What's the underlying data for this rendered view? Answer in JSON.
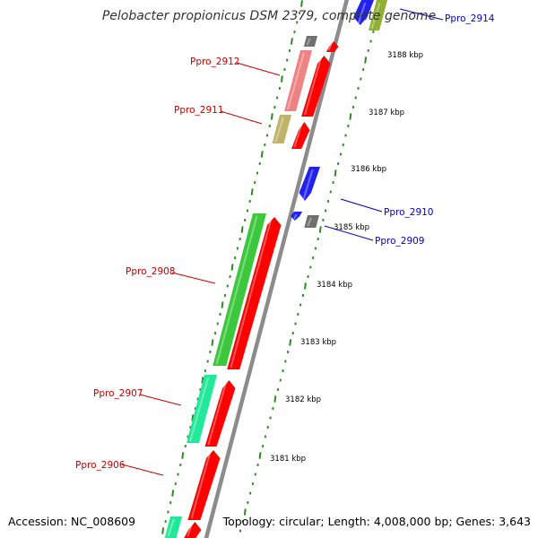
{
  "title": "Pelobacter propionicus DSM 2379, complete genome",
  "accession": "Accession: NC_008609",
  "summary": "Topology: circular; Length: 4,008,000 bp; Genes: 3,643",
  "colors": {
    "backbone": "#8c8c8c",
    "ruler_dots": "#2e8b22",
    "label_forward": "#cc0000",
    "label_reverse": "#0000cc",
    "cds": "#ff0000",
    "gene_gray": "#707070"
  },
  "ruler": [
    {
      "label": "3188 kbp"
    },
    {
      "label": "3187 kbp"
    },
    {
      "label": "3186 kbp"
    },
    {
      "label": "3185 kbp"
    },
    {
      "label": "3184 kbp"
    },
    {
      "label": "3183 kbp"
    },
    {
      "label": "3182 kbp"
    },
    {
      "label": "3181 kbp"
    }
  ],
  "genes": [
    {
      "label": "Ppro_2914",
      "strand": "reverse"
    },
    {
      "label": "Ppro_2912",
      "strand": "forward"
    },
    {
      "label": "Ppro_2911",
      "strand": "forward"
    },
    {
      "label": "Ppro_2910",
      "strand": "reverse"
    },
    {
      "label": "Ppro_2909",
      "strand": "reverse"
    },
    {
      "label": "Ppro_2908",
      "strand": "forward"
    },
    {
      "label": "Ppro_2907",
      "strand": "forward"
    },
    {
      "label": "Ppro_2906",
      "strand": "forward"
    }
  ]
}
